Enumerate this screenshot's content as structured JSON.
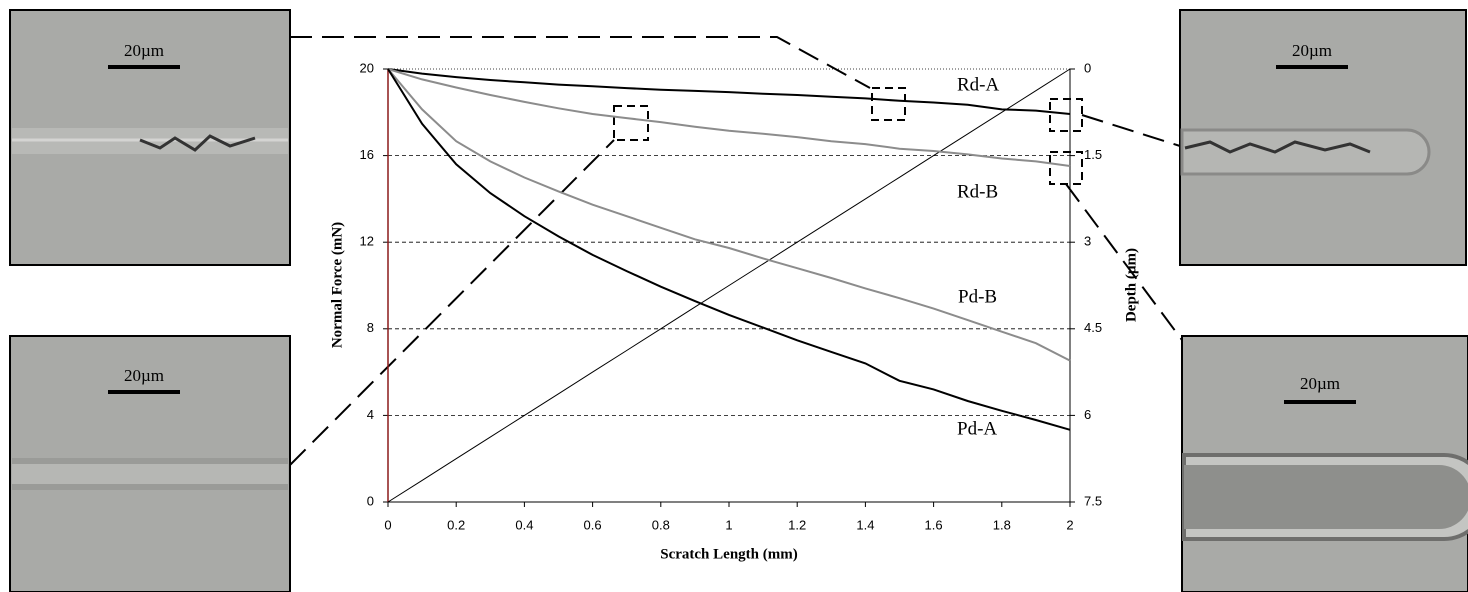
{
  "chart_data": {
    "type": "line",
    "x_label": "Scratch Length (mm)",
    "y_label": "Normal Force (mN)",
    "y2_label": "Depth (µm)",
    "x": [
      0,
      0.1,
      0.2,
      0.3,
      0.4,
      0.5,
      0.6,
      0.7,
      0.8,
      0.9,
      1.0,
      1.1,
      1.2,
      1.3,
      1.4,
      1.5,
      1.6,
      1.7,
      1.8,
      1.9,
      2.0
    ],
    "xlim": [
      0,
      2
    ],
    "xticks": [
      0,
      0.2,
      0.4,
      0.6,
      0.8,
      1,
      1.2,
      1.4,
      1.6,
      1.8,
      2
    ],
    "ylim": [
      0,
      20
    ],
    "yticks": [
      0,
      4,
      8,
      12,
      16,
      20
    ],
    "y2lim": [
      7.5,
      0
    ],
    "y2ticks": [
      0,
      1.5,
      3,
      4.5,
      6,
      7.5
    ],
    "grid": true,
    "series": [
      {
        "color": "#000000",
        "values": [
          0,
          1,
          2,
          3,
          4,
          5,
          6,
          7,
          8,
          9,
          10,
          11,
          12,
          13,
          14,
          15,
          16,
          17,
          18,
          19,
          20
        ]
      },
      {
        "name": "Rd-A",
        "color": "#000000",
        "axis": "y2",
        "values": [
          0,
          0.08,
          0.14,
          0.19,
          0.23,
          0.27,
          0.3,
          0.33,
          0.36,
          0.38,
          0.4,
          0.43,
          0.45,
          0.48,
          0.51,
          0.55,
          0.58,
          0.62,
          0.7,
          0.72,
          0.78
        ]
      },
      {
        "name": "Rd-B",
        "color": "#8c8c8c",
        "axis": "y2",
        "values": [
          0,
          0.18,
          0.32,
          0.45,
          0.57,
          0.68,
          0.78,
          0.85,
          0.92,
          1.0,
          1.07,
          1.12,
          1.18,
          1.25,
          1.3,
          1.38,
          1.42,
          1.48,
          1.55,
          1.6,
          1.68
        ]
      },
      {
        "name": "Pd-B",
        "color": "#8c8c8c",
        "axis": "y2",
        "values": [
          0,
          0.7,
          1.25,
          1.6,
          1.88,
          2.12,
          2.35,
          2.55,
          2.75,
          2.95,
          3.1,
          3.28,
          3.45,
          3.62,
          3.8,
          3.97,
          4.15,
          4.35,
          4.55,
          4.75,
          5.05
        ]
      },
      {
        "name": "Pd-A",
        "color": "#000000",
        "axis": "y2",
        "values": [
          0,
          0.95,
          1.65,
          2.15,
          2.55,
          2.9,
          3.22,
          3.5,
          3.77,
          4.02,
          4.26,
          4.48,
          4.7,
          4.9,
          5.1,
          5.4,
          5.55,
          5.75,
          5.92,
          6.08,
          6.25
        ]
      }
    ]
  },
  "micrographs": [
    {
      "scale_label": "20µm"
    },
    {
      "scale_label": "20µm"
    },
    {
      "scale_label": "20µm"
    },
    {
      "scale_label": "20µm"
    }
  ]
}
